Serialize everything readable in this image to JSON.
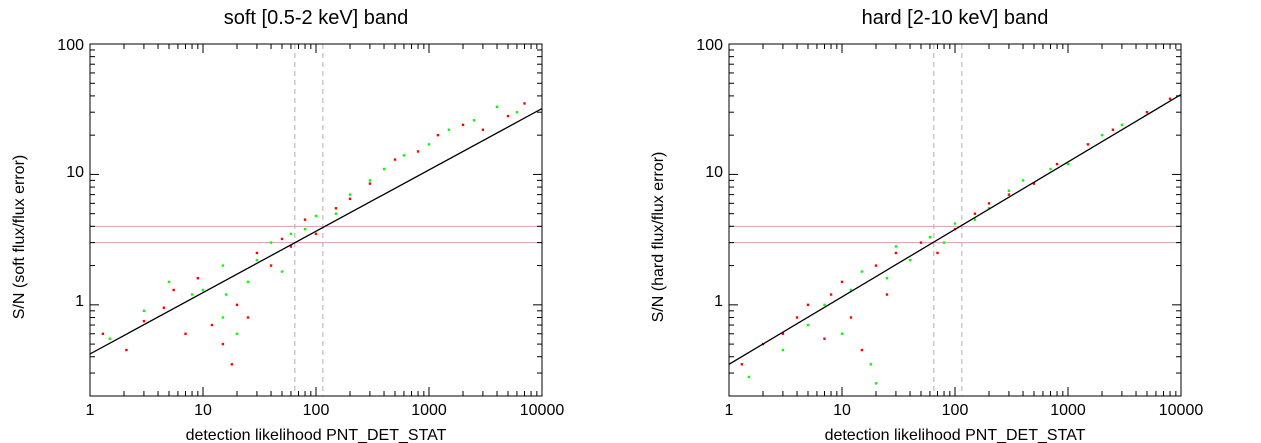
{
  "chart_data": [
    {
      "type": "scatter",
      "title": "soft [0.5-2 keV] band",
      "xlabel": "detection likelihood PNT_DET_STAT",
      "ylabel": "S/N (soft flux/flux error)",
      "xscale": "log",
      "yscale": "log",
      "xlim": [
        1,
        10000
      ],
      "ylim": [
        0.2,
        100
      ],
      "xticks": [
        1,
        10,
        100,
        1000,
        10000
      ],
      "xtick_labels": [
        "1",
        "10",
        "100",
        "1000",
        "10000"
      ],
      "yticks": [
        1,
        10,
        100
      ],
      "ytick_labels": [
        "1",
        "10",
        "100"
      ],
      "fit_line": {
        "x": [
          1,
          10000
        ],
        "y": [
          0.42,
          32
        ]
      },
      "reference_lines": {
        "horizontal_y": [
          3,
          4
        ],
        "vertical_x": [
          65,
          115
        ]
      },
      "series": [
        {
          "color": "#ff0000",
          "points": [
            [
              1.3,
              0.6
            ],
            [
              2.1,
              0.45
            ],
            [
              3.0,
              0.75
            ],
            [
              4.5,
              0.95
            ],
            [
              5.5,
              1.3
            ],
            [
              7.0,
              0.6
            ],
            [
              9,
              1.6
            ],
            [
              12,
              0.7
            ],
            [
              15,
              0.5
            ],
            [
              18,
              0.35
            ],
            [
              20,
              1.0
            ],
            [
              25,
              0.8
            ],
            [
              30,
              2.5
            ],
            [
              40,
              2.0
            ],
            [
              50,
              3.2
            ],
            [
              60,
              2.8
            ],
            [
              80,
              4.5
            ],
            [
              100,
              3.5
            ],
            [
              150,
              5.5
            ],
            [
              200,
              6.5
            ],
            [
              300,
              8.5
            ],
            [
              500,
              13
            ],
            [
              800,
              15
            ],
            [
              1200,
              20
            ],
            [
              2000,
              24
            ],
            [
              3000,
              22
            ],
            [
              5000,
              28
            ],
            [
              7000,
              35
            ]
          ]
        },
        {
          "color": "#00ff00",
          "points": [
            [
              1.5,
              0.55
            ],
            [
              3,
              0.9
            ],
            [
              5,
              1.5
            ],
            [
              8,
              1.2
            ],
            [
              10,
              1.3
            ],
            [
              15,
              0.8
            ],
            [
              15,
              2.0
            ],
            [
              16,
              1.2
            ],
            [
              20,
              0.6
            ],
            [
              25,
              1.5
            ],
            [
              30,
              2.2
            ],
            [
              40,
              3.0
            ],
            [
              50,
              1.8
            ],
            [
              60,
              3.5
            ],
            [
              80,
              3.8
            ],
            [
              100,
              4.8
            ],
            [
              150,
              5.0
            ],
            [
              200,
              7.0
            ],
            [
              300,
              9
            ],
            [
              400,
              11
            ],
            [
              600,
              14
            ],
            [
              1000,
              17
            ],
            [
              1500,
              22
            ],
            [
              2500,
              26
            ],
            [
              4000,
              33
            ],
            [
              6000,
              30
            ]
          ]
        }
      ]
    },
    {
      "type": "scatter",
      "title": "hard [2-10 keV] band",
      "xlabel": "detection likelihood PNT_DET_STAT",
      "ylabel": "S/N (hard flux/flux error)",
      "xscale": "log",
      "yscale": "log",
      "xlim": [
        1,
        10000
      ],
      "ylim": [
        0.2,
        100
      ],
      "xticks": [
        1,
        10,
        100,
        1000,
        10000
      ],
      "xtick_labels": [
        "1",
        "10",
        "100",
        "1000",
        "10000"
      ],
      "yticks": [
        1,
        10,
        100
      ],
      "ytick_labels": [
        "1",
        "10",
        "100"
      ],
      "fit_line": {
        "x": [
          1,
          10000
        ],
        "y": [
          0.35,
          41
        ]
      },
      "reference_lines": {
        "horizontal_y": [
          3,
          4
        ],
        "vertical_x": [
          65,
          115
        ]
      },
      "series": [
        {
          "color": "#ff0000",
          "points": [
            [
              1.3,
              0.35
            ],
            [
              2,
              0.5
            ],
            [
              3,
              0.6
            ],
            [
              4,
              0.8
            ],
            [
              5,
              1.0
            ],
            [
              7,
              0.55
            ],
            [
              8,
              1.2
            ],
            [
              10,
              1.5
            ],
            [
              12,
              0.8
            ],
            [
              15,
              0.45
            ],
            [
              20,
              2.0
            ],
            [
              25,
              1.2
            ],
            [
              30,
              2.5
            ],
            [
              50,
              3.0
            ],
            [
              70,
              2.5
            ],
            [
              100,
              3.8
            ],
            [
              150,
              5.0
            ],
            [
              200,
              6.0
            ],
            [
              300,
              7.0
            ],
            [
              500,
              8.5
            ],
            [
              800,
              12
            ],
            [
              1500,
              17
            ],
            [
              2500,
              22
            ],
            [
              5000,
              30
            ],
            [
              8000,
              38
            ]
          ]
        },
        {
          "color": "#00ff00",
          "points": [
            [
              1.5,
              0.28
            ],
            [
              3,
              0.45
            ],
            [
              5,
              0.7
            ],
            [
              7,
              1.0
            ],
            [
              10,
              0.6
            ],
            [
              12,
              1.3
            ],
            [
              15,
              1.8
            ],
            [
              18,
              0.35
            ],
            [
              20,
              0.25
            ],
            [
              25,
              1.6
            ],
            [
              30,
              2.8
            ],
            [
              40,
              2.2
            ],
            [
              60,
              3.3
            ],
            [
              80,
              3.0
            ],
            [
              100,
              4.2
            ],
            [
              150,
              4.5
            ],
            [
              200,
              5.5
            ],
            [
              300,
              7.5
            ],
            [
              400,
              9.0
            ],
            [
              700,
              11
            ],
            [
              1000,
              12
            ],
            [
              2000,
              20
            ],
            [
              3000,
              24
            ]
          ]
        }
      ]
    }
  ]
}
